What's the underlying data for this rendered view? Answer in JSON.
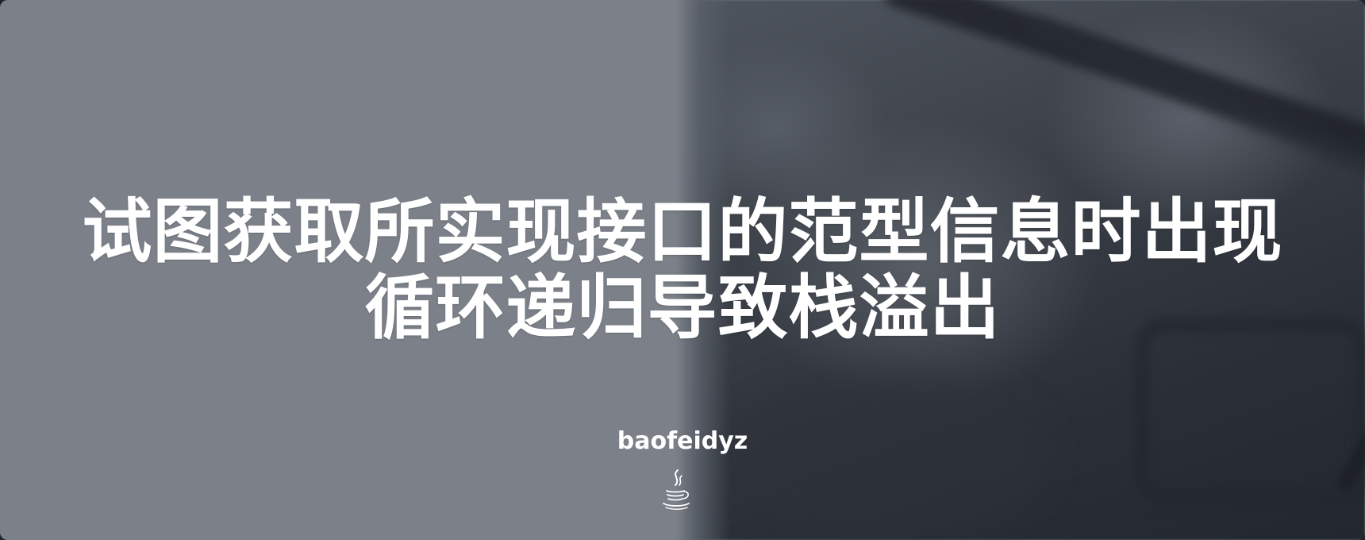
{
  "cover": {
    "title": "试图获取所实现接口的范型信息时出现循环递归导致栈溢出",
    "author": "baofeidyz",
    "icon": "java-coffee-cup-icon"
  },
  "colors": {
    "left_panel": "#7b8089",
    "right_panel_dark": "#23282f",
    "text": "#ffffff"
  }
}
